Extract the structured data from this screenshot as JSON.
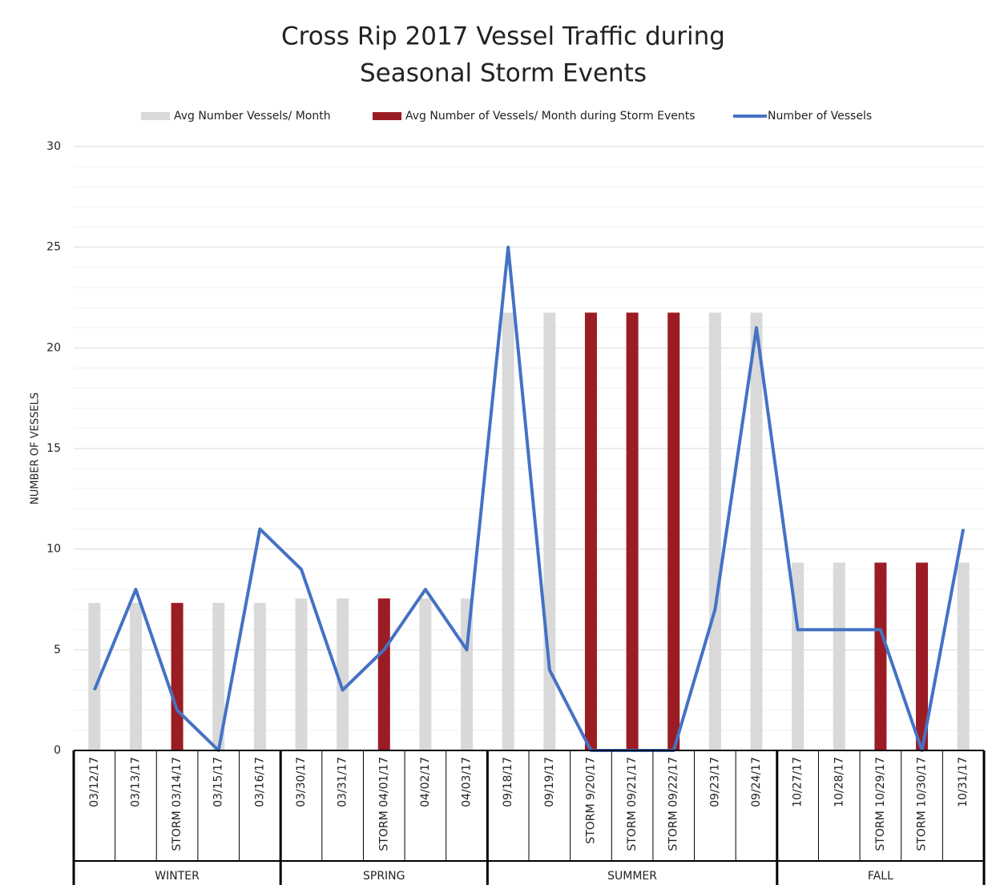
{
  "chart_data": {
    "type": "bar_line",
    "title": [
      "Cross Rip 2017 Vessel Traffic during",
      "Seasonal Storm Events"
    ],
    "y_label": "NUMBER OF VESSELS",
    "categories": [
      "03/12/17",
      "03/13/17",
      "STORM 03/14/17",
      "03/15/17",
      "03/16/17",
      "03/30/17",
      "03/31/17",
      "STORM 04/01/17",
      "04/02/17",
      "04/03/17",
      "09/18/17",
      "09/19/17",
      "STORM 9/20/17",
      "STORM 09/21/17",
      "STORM 09/22/17",
      "09/23/17",
      "09/24/17",
      "10/27/17",
      "10/28/17",
      "STORM 10/29/17",
      "STORM 10/30/17",
      "10/31/17"
    ],
    "groups": [
      {
        "label": "WINTER",
        "size": 5
      },
      {
        "label": "SPRING",
        "size": 5
      },
      {
        "label": "SUMMER",
        "size": 7
      },
      {
        "label": "FALL",
        "size": 5
      }
    ],
    "series": [
      {
        "name": "Avg Number Vessels/ Month",
        "kind": "bar",
        "color": "#d9d9d9",
        "values": [
          7.33,
          7.33,
          null,
          7.33,
          7.33,
          7.55,
          7.55,
          null,
          7.55,
          7.55,
          21.75,
          21.75,
          null,
          null,
          null,
          21.75,
          21.75,
          9.33,
          9.33,
          null,
          null,
          9.33
        ]
      },
      {
        "name": "Avg Number of Vessels/ Month during Storm Events",
        "kind": "bar",
        "color": "#9b1c23",
        "values": [
          null,
          null,
          7.33,
          null,
          null,
          null,
          null,
          7.55,
          null,
          null,
          null,
          null,
          21.75,
          21.75,
          21.75,
          null,
          null,
          null,
          null,
          9.33,
          9.33,
          null
        ]
      },
      {
        "name": "Number of Vessels",
        "kind": "line",
        "color": "#4472c4",
        "values": [
          3,
          8,
          2,
          0,
          11,
          9,
          3,
          5,
          8,
          5,
          25,
          4,
          0,
          0,
          0,
          7,
          21,
          6,
          6,
          6,
          0,
          11
        ]
      }
    ],
    "ylim": [
      0,
      30
    ],
    "yticks": [
      0,
      5,
      10,
      15,
      20,
      25,
      30
    ],
    "minor_yticks": [
      1,
      2,
      3,
      4,
      6,
      7,
      8,
      9,
      11,
      12,
      13,
      14,
      16,
      17,
      18,
      19,
      21,
      22,
      23,
      24,
      26,
      27,
      28,
      29
    ],
    "grid": true,
    "legend": "top"
  }
}
